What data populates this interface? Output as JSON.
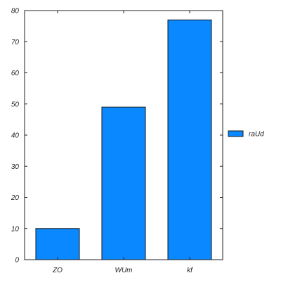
{
  "colors": {
    "bar_fill": "#0a88ff",
    "bar_stroke": "#1a1a1a",
    "axis": "#222222",
    "background": "#ffffff"
  },
  "chart_data": {
    "type": "bar",
    "categories": [
      "ZO",
      "WUm",
      "kf"
    ],
    "series": [
      {
        "name": "raUd",
        "values": [
          10,
          49,
          77
        ]
      }
    ],
    "title": "",
    "xlabel": "",
    "ylabel": "",
    "ylim": [
      0,
      80
    ],
    "yticks": [
      0,
      10,
      20,
      30,
      40,
      50,
      60,
      70,
      80
    ],
    "grid": false,
    "legend": {
      "placement": "right",
      "entries": [
        "raUd"
      ]
    }
  }
}
